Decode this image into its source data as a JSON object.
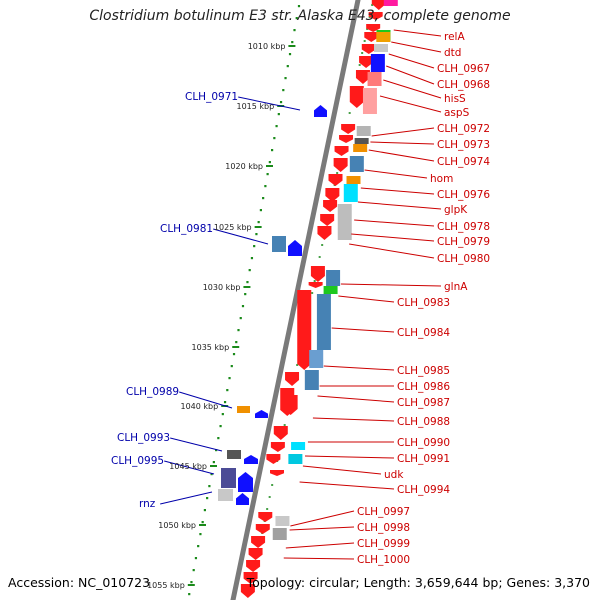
{
  "title": "Clostridium botulinum E3 str. Alaska E43, complete genome",
  "footer": {
    "accession": "Accession: NC_010723",
    "summary": "Topology: circular; Length: 3,659,644 bp; Genes: 3,370"
  },
  "scale_labels": [
    "1010 kbp",
    "1015 kbp",
    "1020 kbp",
    "1025 kbp",
    "1030 kbp",
    "1035 kbp",
    "1040 kbp",
    "1045 kbp",
    "1050 kbp",
    "1055 kbp"
  ],
  "genes_right": [
    "relA",
    "dtd",
    "CLH_0967",
    "CLH_0968",
    "hisS",
    "aspS",
    "CLH_0972",
    "CLH_0973",
    "CLH_0974",
    "hom",
    "CLH_0976",
    "glpK",
    "CLH_0978",
    "CLH_0979",
    "CLH_0980",
    "glnA",
    "CLH_0983",
    "CLH_0984",
    "CLH_0985",
    "CLH_0986",
    "CLH_0987",
    "CLH_0988",
    "CLH_0990",
    "CLH_0991",
    "udk",
    "CLH_0994",
    "CLH_0997",
    "CLH_0998",
    "CLH_0999",
    "CLH_1000"
  ],
  "genes_left": [
    "CLH_0971",
    "CLH_0981",
    "CLH_0989",
    "CLH_0993",
    "CLH_0995",
    "rnz"
  ],
  "colors": {
    "forward_gene": "#ff1a1a",
    "reverse_gene": "#1010ff",
    "right_label": "#cc0000",
    "left_label": "#0000aa",
    "backbone": "#7a7a7a",
    "scale_dot": "#1a8a1a"
  }
}
